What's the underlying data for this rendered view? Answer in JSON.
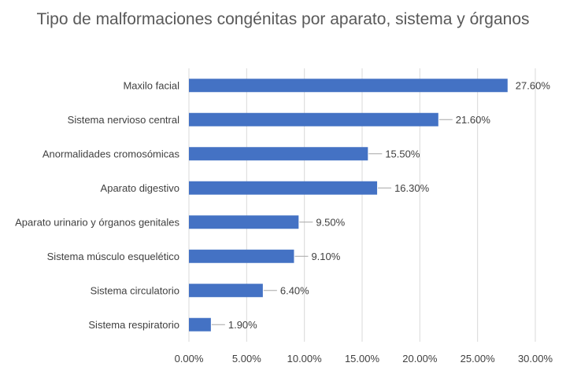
{
  "chart_data": {
    "type": "bar",
    "orientation": "horizontal",
    "title": "Tipo de malformaciones congénitas por aparato, sistema y órganos",
    "categories": [
      "Maxilo facial",
      "Sistema nervioso central",
      "Anormalidades cromosómicas",
      "Aparato digestivo",
      "Aparato urinario y órganos genitales",
      "Sistema músculo esquelético",
      "Sistema circulatorio",
      "Sistema respiratorio"
    ],
    "values": [
      27.6,
      21.6,
      15.5,
      16.3,
      9.5,
      9.1,
      6.4,
      1.9
    ],
    "value_labels": [
      "27.60%",
      "21.60%",
      "15.50%",
      "16.30%",
      "9.50%",
      "9.10%",
      "6.40%",
      "1.90%"
    ],
    "x_ticks": [
      0,
      5,
      10,
      15,
      20,
      25,
      30
    ],
    "x_tick_labels": [
      "0.00%",
      "5.00%",
      "10.00%",
      "15.00%",
      "20.00%",
      "25.00%",
      "30.00%"
    ],
    "xlim": [
      0,
      30
    ],
    "xlabel": "",
    "ylabel": "",
    "grid": "vertical",
    "legend": "none",
    "bar_color": "#4472C4",
    "grid_color": "#D9D9D9",
    "leader_line_color": "#A6A6A6"
  }
}
